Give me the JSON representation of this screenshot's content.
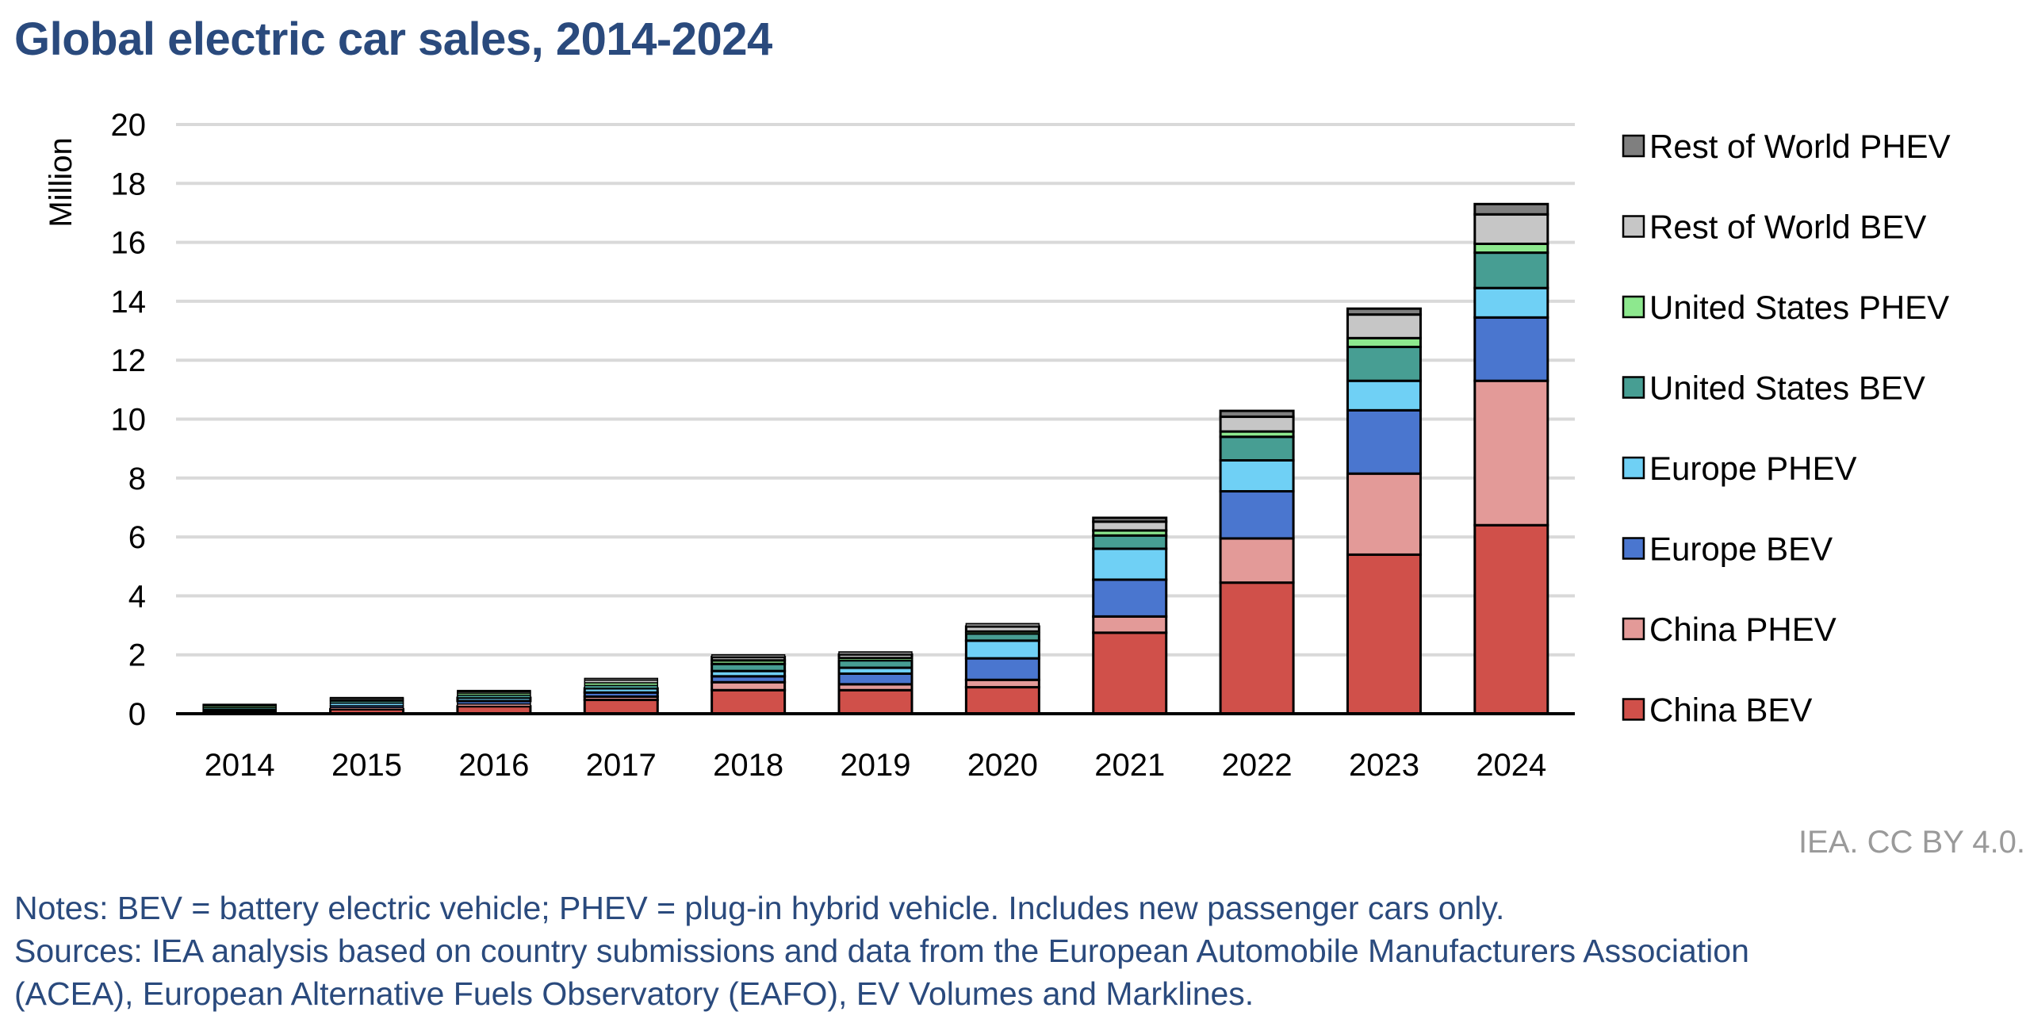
{
  "title": "Global electric car sales, 2014-2024",
  "credit": "IEA. CC BY 4.0.",
  "notes": [
    "Notes: BEV = battery electric vehicle; PHEV = plug-in hybrid vehicle. Includes new passenger cars only.",
    "Sources: IEA analysis based on country submissions and data from the European Automobile Manufacturers Association",
    "(ACEA), European Alternative Fuels Observatory (EAFO), EV Volumes and Marklines."
  ],
  "chart_data": {
    "type": "bar",
    "stacked": true,
    "ylabel": "Million",
    "ylim": [
      0,
      20
    ],
    "yticks": [
      0,
      2,
      4,
      6,
      8,
      10,
      12,
      14,
      16,
      18,
      20
    ],
    "grid": true,
    "legend_position": "right",
    "categories": [
      "2014",
      "2015",
      "2016",
      "2017",
      "2018",
      "2019",
      "2020",
      "2021",
      "2022",
      "2023",
      "2024"
    ],
    "series": [
      {
        "name": "China BEV",
        "color": "#d0504a",
        "values": [
          0.05,
          0.15,
          0.25,
          0.47,
          0.8,
          0.8,
          0.9,
          2.75,
          4.45,
          5.4,
          6.4
        ]
      },
      {
        "name": "China PHEV",
        "color": "#e39a98",
        "values": [
          0.02,
          0.06,
          0.08,
          0.11,
          0.27,
          0.2,
          0.25,
          0.55,
          1.5,
          2.75,
          4.9
        ]
      },
      {
        "name": "Europe BEV",
        "color": "#4a76cf",
        "values": [
          0.04,
          0.06,
          0.1,
          0.14,
          0.2,
          0.36,
          0.73,
          1.25,
          1.6,
          2.15,
          2.15
        ]
      },
      {
        "name": "Europe PHEV",
        "color": "#6fd0f5",
        "values": [
          0.04,
          0.09,
          0.11,
          0.14,
          0.18,
          0.2,
          0.6,
          1.05,
          1.05,
          1.0,
          1.0
        ]
      },
      {
        "name": "United States BEV",
        "color": "#479e93",
        "values": [
          0.06,
          0.07,
          0.09,
          0.1,
          0.24,
          0.25,
          0.24,
          0.45,
          0.8,
          1.15,
          1.2
        ]
      },
      {
        "name": "United States PHEV",
        "color": "#8de88e",
        "values": [
          0.06,
          0.04,
          0.07,
          0.09,
          0.12,
          0.08,
          0.07,
          0.17,
          0.18,
          0.3,
          0.3
        ]
      },
      {
        "name": "Rest of World BEV",
        "color": "#c6c6c6",
        "values": [
          0.03,
          0.05,
          0.05,
          0.09,
          0.11,
          0.12,
          0.17,
          0.3,
          0.5,
          0.8,
          1.0
        ]
      },
      {
        "name": "Rest of World PHEV",
        "color": "#7f7f7f",
        "values": [
          0.02,
          0.03,
          0.04,
          0.06,
          0.08,
          0.09,
          0.1,
          0.13,
          0.2,
          0.2,
          0.35
        ]
      }
    ]
  }
}
